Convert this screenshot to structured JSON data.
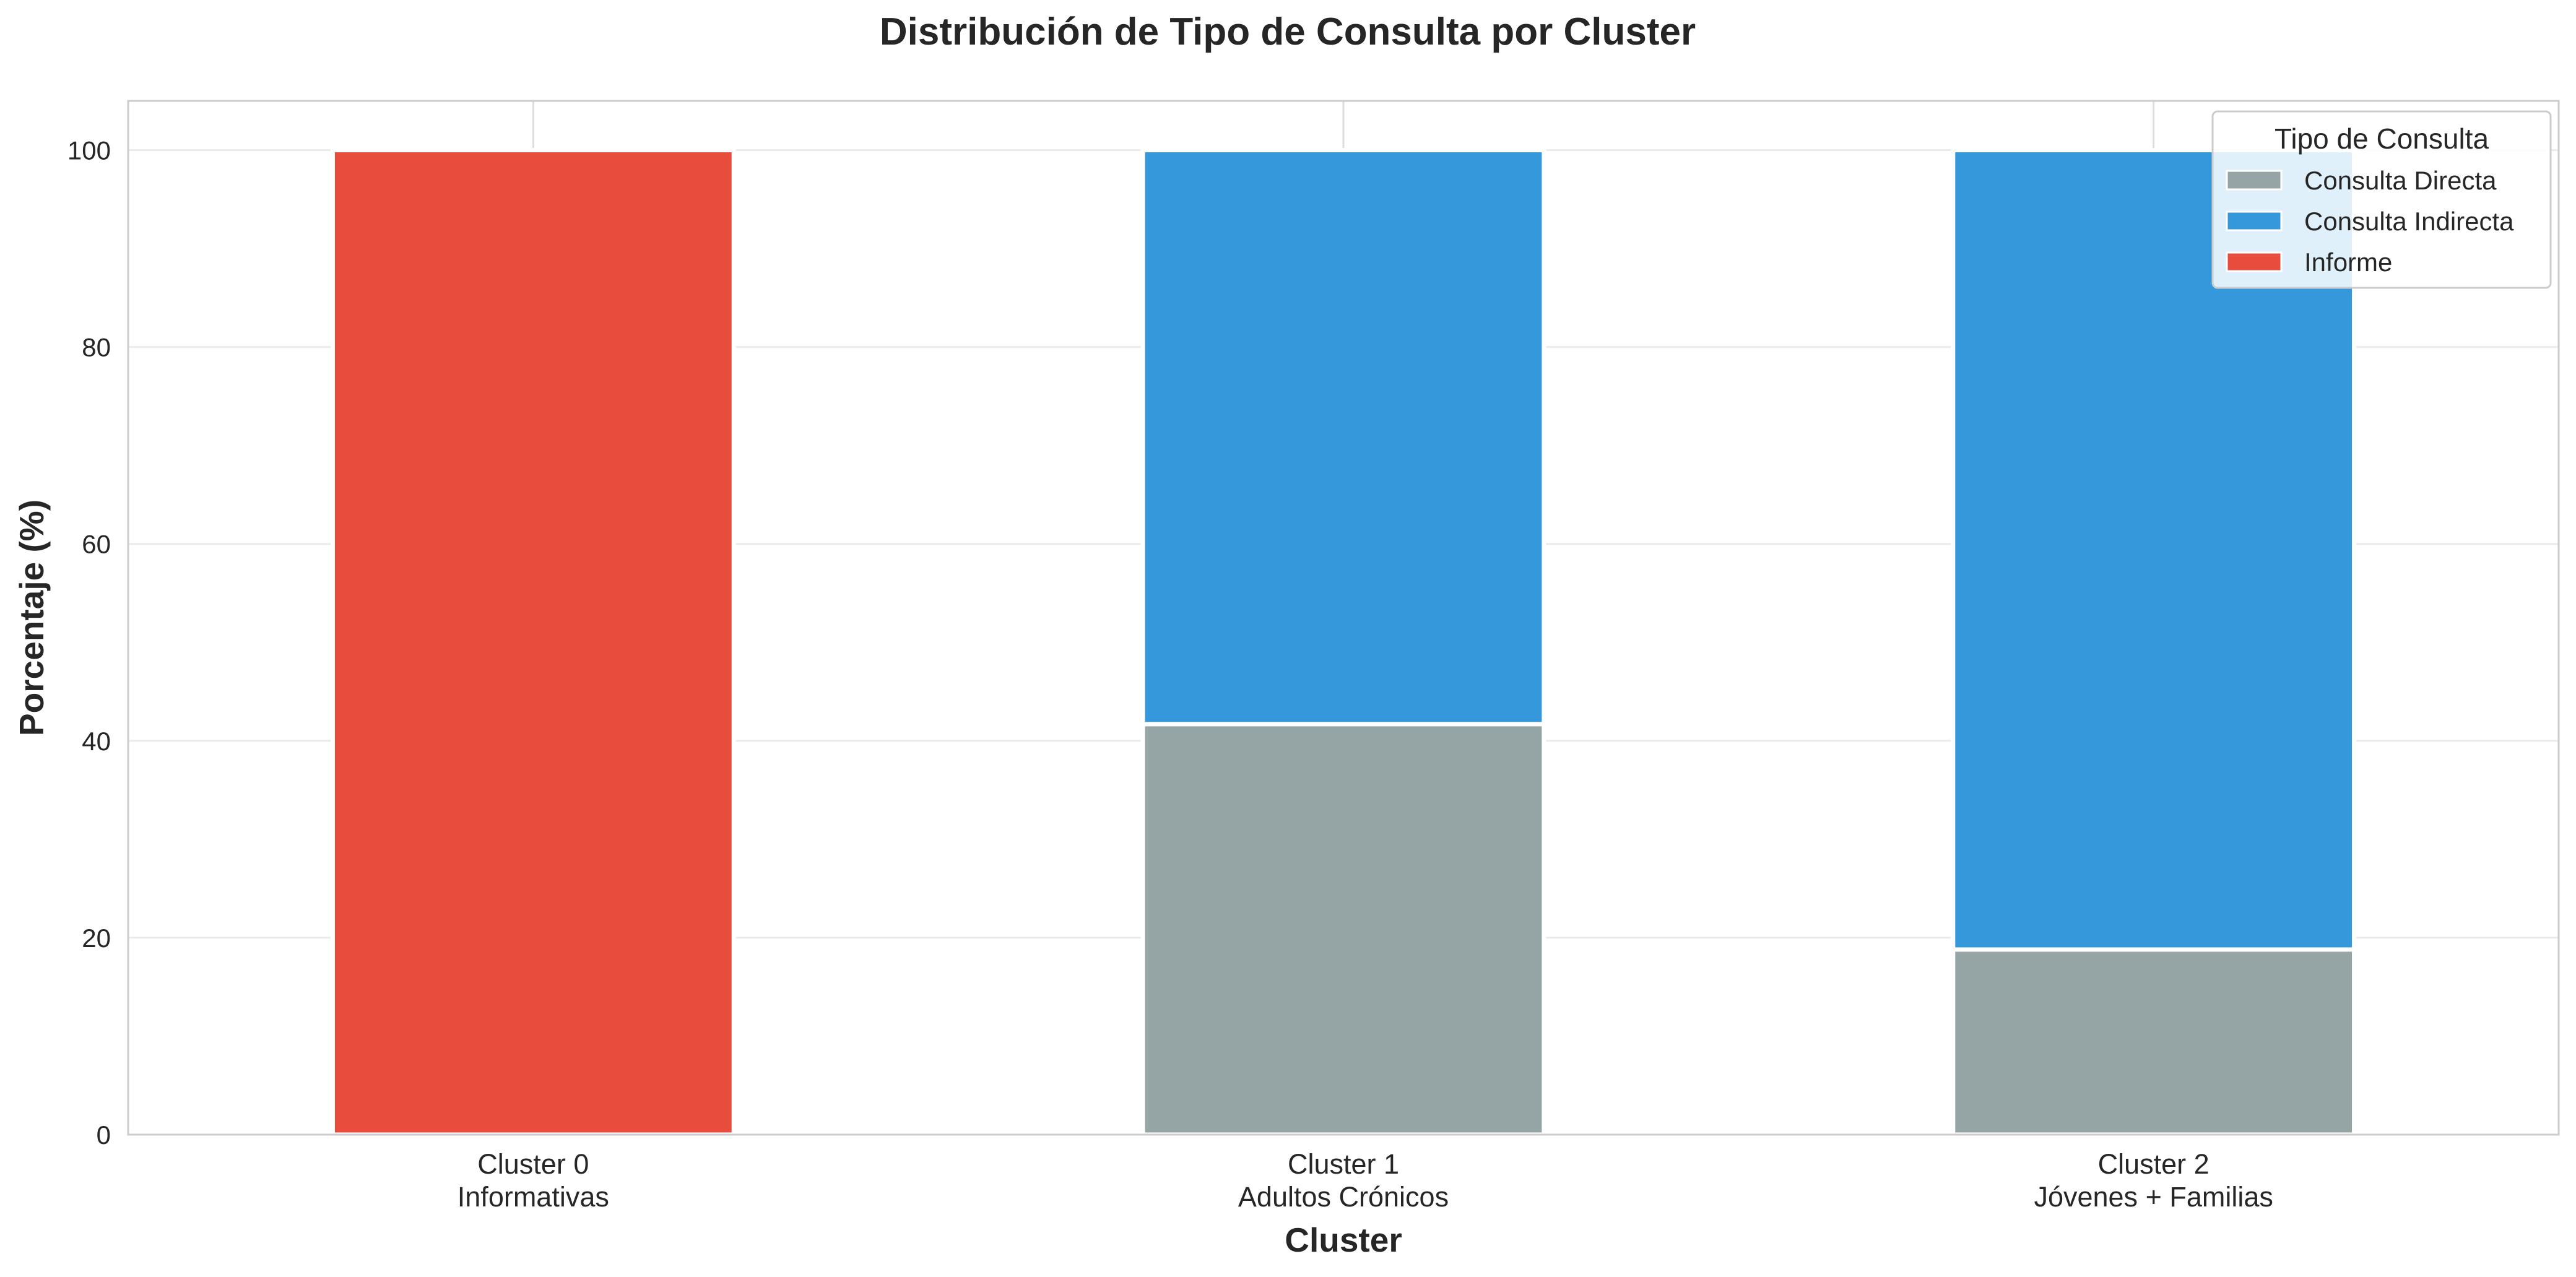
{
  "chart_data": {
    "type": "bar",
    "stacked": true,
    "title": "Distribución de Tipo de Consulta por Cluster",
    "xlabel": "Cluster",
    "ylabel": "Porcentaje (%)",
    "ylim": [
      0,
      105
    ],
    "yticks": [
      "0",
      "20",
      "40",
      "60",
      "80",
      "100"
    ],
    "grid": true,
    "categories": [
      [
        "Cluster 0",
        "Informativas"
      ],
      [
        "Cluster 1",
        "Adultos Crónicos"
      ],
      [
        "Cluster 2",
        "Jóvenes + Familias"
      ]
    ],
    "legend": {
      "title": "Tipo de Consulta",
      "placement": "top-right"
    },
    "series": [
      {
        "name": "Consulta Directa",
        "color": "#95a5a6",
        "values": [
          0,
          41.7,
          18.8
        ]
      },
      {
        "name": "Consulta Indirecta",
        "color": "#3498db",
        "values": [
          0,
          58.3,
          81.2
        ]
      },
      {
        "name": "Informe",
        "color": "#e74c3c",
        "values": [
          100,
          0,
          0
        ]
      }
    ]
  }
}
